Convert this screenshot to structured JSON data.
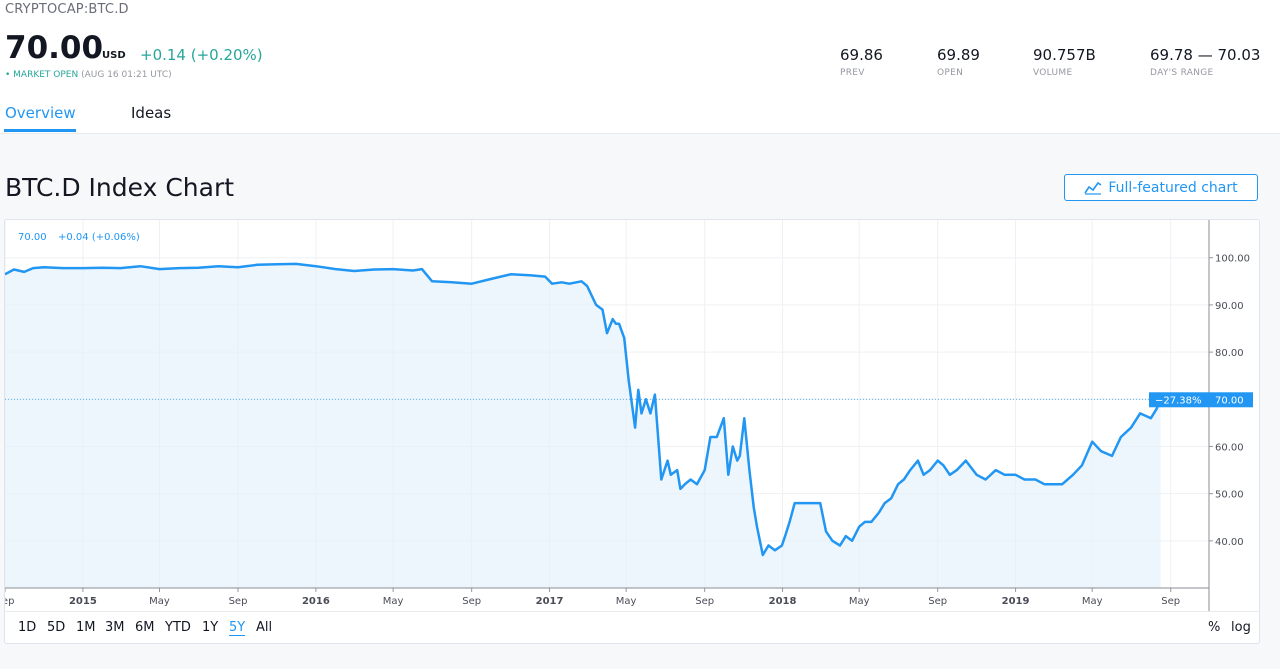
{
  "header": {
    "symbol": "CRYPTOCAP:BTC.D",
    "price": "70.00",
    "currency": "USD",
    "change": "+0.14 (+0.20%)",
    "market_status": "• MARKET OPEN",
    "market_time": "(AUG 16 01:21 UTC)",
    "stats": [
      {
        "value": "69.86",
        "label": "PREV"
      },
      {
        "value": "69.89",
        "label": "OPEN"
      },
      {
        "value": "90.757B",
        "label": "VOLUME"
      },
      {
        "value": "69.78 — 70.03",
        "label": "DAY'S RANGE"
      }
    ]
  },
  "tabs": [
    {
      "label": "Overview",
      "active": true
    },
    {
      "label": "Ideas",
      "active": false
    }
  ],
  "chart_section": {
    "title": "BTC.D Index Chart",
    "full_chart_button": "Full-featured chart",
    "full_chart_icon": "chart-line-icon"
  },
  "chart_legend": {
    "value": "70.00",
    "change": "+0.04 (+0.06%)"
  },
  "price_tag": {
    "percent": "−27.38%",
    "value": "70.00"
  },
  "range_buttons": [
    "1D",
    "5D",
    "1M",
    "3M",
    "6M",
    "YTD",
    "1Y",
    "5Y",
    "All"
  ],
  "active_range": "5Y",
  "scale_options": [
    "%",
    "log"
  ],
  "colors": {
    "accent": "#2196f3",
    "positive": "#26a69a",
    "line": "#2196f3"
  },
  "chart_data": {
    "type": "area",
    "title": "",
    "xlabel": "",
    "ylabel": "",
    "ylim": [
      30,
      108
    ],
    "xlim": [
      "2014-09-01",
      "2019-10-31"
    ],
    "y_ticks": [
      "40.00",
      "50.00",
      "60.00",
      "70.00",
      "80.00",
      "90.00",
      "100.00"
    ],
    "x_ticks": [
      {
        "label": "Sep",
        "date": "2014-09-01",
        "bold": false
      },
      {
        "label": "2015",
        "date": "2015-01-01",
        "bold": true
      },
      {
        "label": "May",
        "date": "2015-05-01",
        "bold": false
      },
      {
        "label": "Sep",
        "date": "2015-09-01",
        "bold": false
      },
      {
        "label": "2016",
        "date": "2016-01-01",
        "bold": true
      },
      {
        "label": "May",
        "date": "2016-05-01",
        "bold": false
      },
      {
        "label": "Sep",
        "date": "2016-09-01",
        "bold": false
      },
      {
        "label": "2017",
        "date": "2017-01-01",
        "bold": true
      },
      {
        "label": "May",
        "date": "2017-05-01",
        "bold": false
      },
      {
        "label": "Sep",
        "date": "2017-09-01",
        "bold": false
      },
      {
        "label": "2018",
        "date": "2018-01-01",
        "bold": true
      },
      {
        "label": "May",
        "date": "2018-05-01",
        "bold": false
      },
      {
        "label": "Sep",
        "date": "2018-09-01",
        "bold": false
      },
      {
        "label": "2019",
        "date": "2019-01-01",
        "bold": true
      },
      {
        "label": "May",
        "date": "2019-05-01",
        "bold": false
      },
      {
        "label": "Sep",
        "date": "2019-09-01",
        "bold": false
      }
    ],
    "last_value": 70.0,
    "series": [
      {
        "x": [
          "2014-09-01",
          "2014-09-15",
          "2014-10-01",
          "2014-10-15",
          "2014-11-01",
          "2014-12-01",
          "2015-01-01",
          "2015-02-01",
          "2015-03-01",
          "2015-04-01",
          "2015-05-01",
          "2015-06-01",
          "2015-07-01",
          "2015-08-01",
          "2015-09-01",
          "2015-10-01",
          "2015-11-01",
          "2015-12-01",
          "2016-01-01",
          "2016-02-01",
          "2016-03-01",
          "2016-04-01",
          "2016-05-01",
          "2016-06-01",
          "2016-06-15",
          "2016-07-01",
          "2016-08-01",
          "2016-09-01",
          "2016-10-01",
          "2016-11-01",
          "2016-12-01",
          "2016-12-25",
          "2017-01-05",
          "2017-01-20",
          "2017-02-01",
          "2017-02-20",
          "2017-03-01",
          "2017-03-15",
          "2017-03-25",
          "2017-04-01",
          "2017-04-10",
          "2017-04-15",
          "2017-04-20",
          "2017-04-28",
          "2017-05-05",
          "2017-05-15",
          "2017-05-20",
          "2017-05-25",
          "2017-06-01",
          "2017-06-08",
          "2017-06-15",
          "2017-06-25",
          "2017-07-05",
          "2017-07-10",
          "2017-07-20",
          "2017-07-25",
          "2017-08-01",
          "2017-08-10",
          "2017-08-20",
          "2017-09-01",
          "2017-09-10",
          "2017-09-20",
          "2017-10-01",
          "2017-10-08",
          "2017-10-15",
          "2017-10-22",
          "2017-10-26",
          "2017-11-02",
          "2017-11-10",
          "2017-11-17",
          "2017-11-22",
          "2017-12-01",
          "2017-12-10",
          "2017-12-20",
          "2017-12-31",
          "2018-01-05",
          "2018-01-12",
          "2018-01-20",
          "2018-02-01",
          "2018-02-10",
          "2018-02-20",
          "2018-03-01",
          "2018-03-10",
          "2018-03-20",
          "2018-04-01",
          "2018-04-10",
          "2018-04-20",
          "2018-05-01",
          "2018-05-10",
          "2018-05-20",
          "2018-06-01",
          "2018-06-10",
          "2018-06-20",
          "2018-07-01",
          "2018-07-10",
          "2018-07-20",
          "2018-08-01",
          "2018-08-10",
          "2018-08-20",
          "2018-09-01",
          "2018-09-10",
          "2018-09-20",
          "2018-10-01",
          "2018-10-15",
          "2018-11-01",
          "2018-11-15",
          "2018-12-01",
          "2018-12-15",
          "2019-01-01",
          "2019-01-15",
          "2019-02-01",
          "2019-02-15",
          "2019-03-01",
          "2019-03-15",
          "2019-04-01",
          "2019-04-15",
          "2019-05-01",
          "2019-05-15",
          "2019-06-01",
          "2019-06-15",
          "2019-07-01",
          "2019-07-15",
          "2019-08-01",
          "2019-08-10",
          "2019-08-16"
        ],
        "y": [
          96.5,
          97.5,
          97.0,
          97.8,
          98.0,
          97.8,
          97.8,
          97.9,
          97.8,
          98.2,
          97.6,
          97.8,
          97.9,
          98.2,
          98.0,
          98.5,
          98.6,
          98.7,
          98.2,
          97.6,
          97.2,
          97.5,
          97.6,
          97.3,
          97.6,
          95.0,
          94.8,
          94.5,
          95.5,
          96.5,
          96.3,
          96.0,
          94.5,
          94.8,
          94.5,
          95.0,
          94.0,
          90.0,
          89.0,
          84.0,
          87.0,
          86.0,
          86.0,
          83.0,
          74.0,
          64.0,
          72.0,
          67.0,
          70.0,
          67.0,
          71.0,
          53.0,
          57.0,
          54.0,
          55.0,
          51.0,
          52.0,
          53.0,
          52.0,
          55.0,
          62.0,
          62.0,
          66.0,
          54.0,
          60.0,
          57.0,
          58.0,
          66.0,
          55.0,
          47.0,
          43.0,
          37.0,
          39.0,
          38.0,
          39.0,
          41.0,
          44.0,
          48.0,
          48.0,
          48.0,
          48.0,
          48.0,
          42.0,
          40.0,
          39.0,
          41.0,
          40.0,
          43.0,
          44.0,
          44.0,
          46.0,
          48.0,
          49.0,
          52.0,
          53.0,
          55.0,
          57.0,
          54.0,
          55.0,
          57.0,
          56.0,
          54.0,
          55.0,
          57.0,
          54.0,
          53.0,
          55.0,
          54.0,
          54.0,
          53.0,
          53.0,
          52.0,
          52.0,
          52.0,
          54.0,
          56.0,
          61.0,
          59.0,
          58.0,
          62.0,
          64.0,
          67.0,
          66.0,
          68.0,
          70.0
        ]
      }
    ]
  }
}
